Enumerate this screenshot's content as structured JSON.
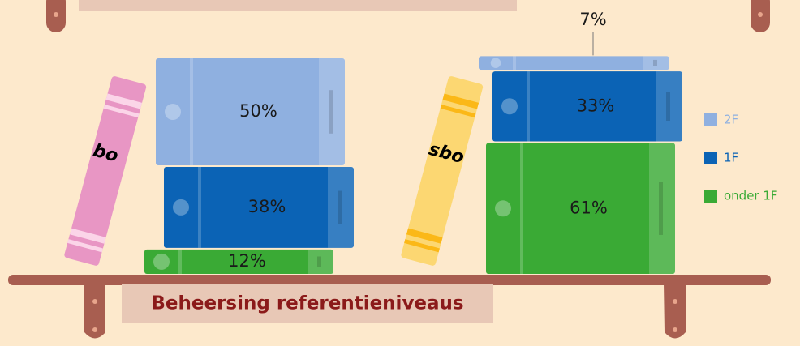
{
  "chart_data": {
    "type": "stacked_books",
    "title": "Beheersing referentieniveaus",
    "categories": [
      "bo",
      "sbo"
    ],
    "series": [
      {
        "name": "2F",
        "color": "#8fb0e0",
        "values": [
          50,
          7
        ],
        "value_labels": [
          "50%",
          "7%"
        ]
      },
      {
        "name": "1F",
        "color": "#0b63b5",
        "values": [
          38,
          33
        ],
        "value_labels": [
          "38%",
          "33%"
        ]
      },
      {
        "name": "onder 1F",
        "color": "#3aaa35",
        "values": [
          12,
          61
        ],
        "value_labels": [
          "12%",
          "61%"
        ]
      }
    ]
  }
}
